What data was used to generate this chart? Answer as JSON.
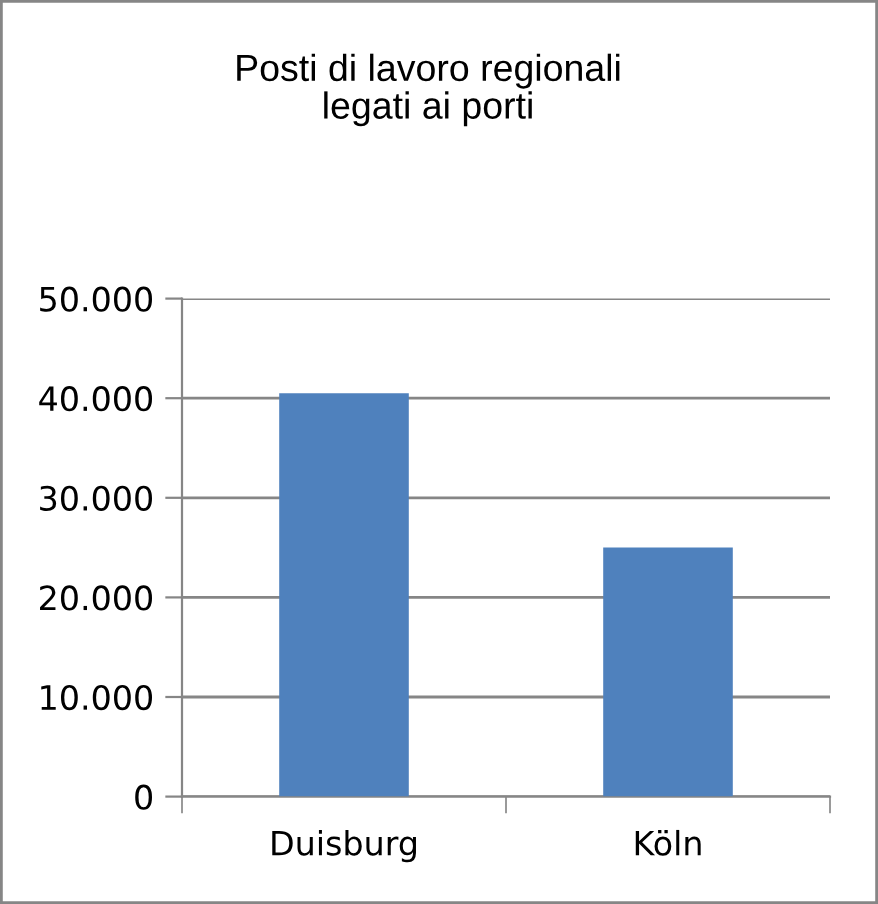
{
  "chart_data": {
    "type": "bar",
    "title": "Posti di lavoro regionali\nlegati ai porti",
    "categories": [
      "Duisburg",
      "Köln"
    ],
    "values": [
      40500,
      25000
    ],
    "color": "#4f81bd",
    "ylim": [
      0,
      50000
    ],
    "yticks": [
      0,
      {
        "value": 10000,
        "label": "10.000"
      },
      {
        "value": 20000,
        "label": "20.000"
      },
      {
        "value": 30000,
        "label": "30.000"
      },
      {
        "value": 40000,
        "label": "40.000"
      },
      {
        "value": 50000,
        "label": "50.000"
      }
    ],
    "grid": "y",
    "legend": false
  }
}
